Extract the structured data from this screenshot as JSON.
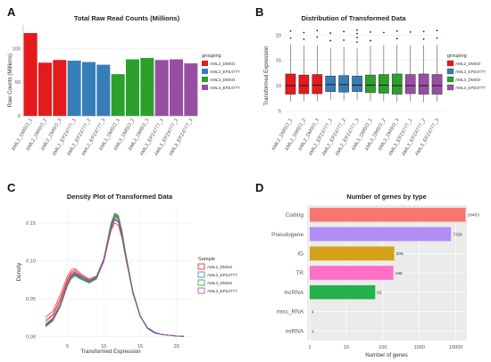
{
  "colors": {
    "AML2_DMSO": "#e41a1c",
    "AML2_EPZ4777": "#377eb8",
    "AML3_DMSO": "#2ca02c",
    "AML3_EPZ4777": "#984ea3",
    "coding": "#f8766d",
    "pseudogene": "#b18cf5",
    "ig": "#d4a017",
    "tr": "#ff6ec7",
    "lncrna": "#22b14c"
  },
  "chart_data": [
    {
      "panel": "A",
      "type": "bar",
      "title": "Total Raw Read Counts (Millions)",
      "xlabel": "",
      "ylabel": "Raw Counts (Millions)",
      "ylim": [
        0,
        135
      ],
      "yticks": [
        0,
        50,
        100
      ],
      "categories": [
        "AML2_DMSO_1",
        "AML2_DMSO_2",
        "AML2_DMSO_3",
        "AML2_EPZ4777_1",
        "AML2_EPZ4777_2",
        "AML2_EPZ4777_3",
        "AML3_DMSO_1",
        "AML3_DMSO_2",
        "AML3_DMSO_3",
        "AML3_EPZ4777_1",
        "AML3_EPZ4777_2",
        "AML3_EPZ4777_3"
      ],
      "values": [
        123,
        79,
        83,
        82,
        80,
        76,
        62,
        84,
        86,
        83,
        84,
        78
      ],
      "groups": [
        "AML2_DMSO",
        "AML2_DMSO",
        "AML2_DMSO",
        "AML2_EPZ4777",
        "AML2_EPZ4777",
        "AML2_EPZ4777",
        "AML3_DMSO",
        "AML3_DMSO",
        "AML3_DMSO",
        "AML3_EPZ4777",
        "AML3_EPZ4777",
        "AML3_EPZ4777"
      ],
      "legend_title": "grouping",
      "legend": [
        "AML2_DMSO",
        "AML2_EPZ4777",
        "AML3_DMSO",
        "AML3_EPZ4777"
      ]
    },
    {
      "panel": "B",
      "type": "box",
      "title": "Distribution of Transformed Data",
      "xlabel": "",
      "ylabel": "Transformed Expression",
      "ylim": [
        4,
        22
      ],
      "yticks": [
        5,
        10,
        15,
        20
      ],
      "categories": [
        "AML2_DMSO_1",
        "AML2_DMSO_2",
        "AML2_DMSO_3",
        "AML2_EPZ4777_1",
        "AML2_EPZ4777_2",
        "AML2_EPZ4777_3",
        "AML3_DMSO_1",
        "AML3_DMSO_2",
        "AML3_DMSO_3",
        "AML3_EPZ4777_1",
        "AML3_EPZ4777_2",
        "AML3_EPZ4777_3"
      ],
      "groups": [
        "AML2_DMSO",
        "AML2_DMSO",
        "AML2_DMSO",
        "AML2_EPZ4777",
        "AML2_EPZ4777",
        "AML2_EPZ4777",
        "AML3_DMSO",
        "AML3_DMSO",
        "AML3_DMSO",
        "AML3_EPZ4777",
        "AML3_EPZ4777",
        "AML3_EPZ4777"
      ],
      "boxes": [
        {
          "whislo": 6.8,
          "q1": 8.3,
          "med": 10.0,
          "q3": 12.3,
          "whishi": 18.2,
          "fliers": [
            19.4,
            20.8
          ]
        },
        {
          "whislo": 6.9,
          "q1": 8.4,
          "med": 10.0,
          "q3": 12.1,
          "whishi": 17.9,
          "fliers": [
            19.2,
            20.5
          ]
        },
        {
          "whislo": 6.9,
          "q1": 8.4,
          "med": 10.1,
          "q3": 12.2,
          "whishi": 18.0,
          "fliers": [
            19.6,
            20.9
          ]
        },
        {
          "whislo": 7.2,
          "q1": 8.8,
          "med": 10.2,
          "q3": 11.9,
          "whishi": 17.5,
          "fliers": [
            18.9,
            20.4
          ]
        },
        {
          "whislo": 7.1,
          "q1": 8.7,
          "med": 10.2,
          "q3": 12.0,
          "whishi": 17.7,
          "fliers": [
            19.0,
            20.7
          ]
        },
        {
          "whislo": 7.2,
          "q1": 8.8,
          "med": 10.1,
          "q3": 11.9,
          "whishi": 17.4,
          "fliers": [
            18.6,
            19.5,
            20.3,
            21.0
          ]
        },
        {
          "whislo": 7.0,
          "q1": 8.6,
          "med": 10.1,
          "q3": 12.1,
          "whishi": 17.8,
          "fliers": [
            18.9,
            20.6
          ]
        },
        {
          "whislo": 6.9,
          "q1": 8.5,
          "med": 10.1,
          "q3": 12.2,
          "whishi": 18.0,
          "fliers": [
            20.5
          ]
        },
        {
          "whislo": 6.8,
          "q1": 8.3,
          "med": 10.0,
          "q3": 12.3,
          "whishi": 18.1,
          "fliers": [
            19.3,
            20.8
          ]
        },
        {
          "whislo": 6.9,
          "q1": 8.4,
          "med": 10.0,
          "q3": 12.2,
          "whishi": 17.9,
          "fliers": [
            20.6
          ]
        },
        {
          "whislo": 6.7,
          "q1": 8.3,
          "med": 10.0,
          "q3": 12.3,
          "whishi": 18.0,
          "fliers": [
            19.2,
            20.7
          ]
        },
        {
          "whislo": 6.8,
          "q1": 8.3,
          "med": 10.0,
          "q3": 12.2,
          "whishi": 18.1,
          "fliers": [
            19.4,
            20.9
          ]
        }
      ],
      "legend_title": "grouping",
      "legend": [
        "AML2_DMSO",
        "AML2_EPZ4777",
        "AML3_DMSO",
        "AML3_EPZ4777"
      ]
    },
    {
      "panel": "C",
      "type": "line",
      "title": "Density Plot of Transformed Data",
      "xlabel": "Transformed Expression",
      "ylabel": "Density",
      "xlim": [
        1,
        22
      ],
      "ylim": [
        -0.005,
        0.17
      ],
      "xticks": [
        5,
        10,
        15,
        20
      ],
      "yticks": [
        0.0,
        0.05,
        0.1,
        0.15
      ],
      "ytick_labels": [
        "0.00",
        "0.05",
        "0.10",
        "0.15"
      ],
      "x": [
        2,
        3,
        4,
        5,
        5.5,
        6,
        7,
        8,
        9,
        10,
        10.5,
        11,
        11.5,
        12,
        12.5,
        13,
        14,
        15,
        16,
        17,
        18,
        19,
        20,
        21
      ],
      "series": [
        {
          "name": "AML2_DMSO",
          "values": [
            0.026,
            0.034,
            0.055,
            0.08,
            0.088,
            0.09,
            0.082,
            0.076,
            0.08,
            0.103,
            0.125,
            0.146,
            0.158,
            0.155,
            0.136,
            0.108,
            0.06,
            0.028,
            0.012,
            0.006,
            0.003,
            0.002,
            0.001,
            0.0005
          ]
        },
        {
          "name": "AML2_DMSO",
          "values": [
            0.022,
            0.03,
            0.05,
            0.076,
            0.085,
            0.088,
            0.08,
            0.074,
            0.078,
            0.1,
            0.122,
            0.142,
            0.154,
            0.151,
            0.133,
            0.106,
            0.058,
            0.027,
            0.012,
            0.006,
            0.003,
            0.002,
            0.001,
            0.0005
          ]
        },
        {
          "name": "AML2_DMSO",
          "values": [
            0.02,
            0.028,
            0.047,
            0.074,
            0.083,
            0.086,
            0.078,
            0.073,
            0.077,
            0.099,
            0.12,
            0.14,
            0.15,
            0.147,
            0.13,
            0.104,
            0.057,
            0.027,
            0.012,
            0.006,
            0.003,
            0.002,
            0.001,
            0.0005
          ]
        },
        {
          "name": "AML2_EPZ4777",
          "values": [
            0.016,
            0.024,
            0.042,
            0.07,
            0.079,
            0.083,
            0.077,
            0.072,
            0.077,
            0.101,
            0.124,
            0.147,
            0.16,
            0.157,
            0.138,
            0.109,
            0.059,
            0.027,
            0.011,
            0.005,
            0.003,
            0.002,
            0.001,
            0.0005
          ]
        },
        {
          "name": "AML2_EPZ4777",
          "values": [
            0.015,
            0.023,
            0.041,
            0.069,
            0.078,
            0.082,
            0.076,
            0.071,
            0.076,
            0.1,
            0.123,
            0.146,
            0.159,
            0.156,
            0.137,
            0.108,
            0.058,
            0.027,
            0.011,
            0.005,
            0.003,
            0.002,
            0.001,
            0.0005
          ]
        },
        {
          "name": "AML2_EPZ4777",
          "values": [
            0.017,
            0.025,
            0.043,
            0.071,
            0.08,
            0.084,
            0.078,
            0.073,
            0.078,
            0.102,
            0.125,
            0.148,
            0.161,
            0.158,
            0.139,
            0.11,
            0.059,
            0.027,
            0.011,
            0.005,
            0.003,
            0.002,
            0.001,
            0.0005
          ]
        },
        {
          "name": "AML3_DMSO",
          "values": [
            0.014,
            0.022,
            0.04,
            0.068,
            0.077,
            0.081,
            0.076,
            0.072,
            0.078,
            0.103,
            0.127,
            0.15,
            0.163,
            0.16,
            0.14,
            0.111,
            0.06,
            0.028,
            0.012,
            0.006,
            0.003,
            0.002,
            0.001,
            0.0005
          ]
        },
        {
          "name": "AML3_DMSO",
          "values": [
            0.015,
            0.023,
            0.041,
            0.069,
            0.078,
            0.082,
            0.076,
            0.071,
            0.077,
            0.101,
            0.124,
            0.148,
            0.161,
            0.158,
            0.138,
            0.109,
            0.059,
            0.027,
            0.012,
            0.006,
            0.003,
            0.002,
            0.001,
            0.0005
          ]
        },
        {
          "name": "AML3_DMSO",
          "values": [
            0.013,
            0.021,
            0.039,
            0.067,
            0.076,
            0.08,
            0.075,
            0.071,
            0.077,
            0.102,
            0.126,
            0.149,
            0.162,
            0.159,
            0.139,
            0.11,
            0.06,
            0.028,
            0.012,
            0.006,
            0.003,
            0.002,
            0.001,
            0.0005
          ]
        },
        {
          "name": "AML3_EPZ4777",
          "values": [
            0.015,
            0.023,
            0.042,
            0.07,
            0.08,
            0.084,
            0.079,
            0.074,
            0.079,
            0.101,
            0.122,
            0.143,
            0.155,
            0.152,
            0.134,
            0.106,
            0.058,
            0.027,
            0.012,
            0.006,
            0.003,
            0.002,
            0.001,
            0.0005
          ]
        },
        {
          "name": "AML3_EPZ4777",
          "values": [
            0.014,
            0.022,
            0.041,
            0.069,
            0.079,
            0.083,
            0.078,
            0.073,
            0.078,
            0.1,
            0.121,
            0.142,
            0.154,
            0.151,
            0.133,
            0.105,
            0.057,
            0.027,
            0.012,
            0.006,
            0.003,
            0.002,
            0.001,
            0.0005
          ]
        },
        {
          "name": "AML3_EPZ4777",
          "values": [
            0.016,
            0.024,
            0.043,
            0.071,
            0.081,
            0.085,
            0.08,
            0.075,
            0.08,
            0.102,
            0.123,
            0.144,
            0.156,
            0.153,
            0.135,
            0.107,
            0.058,
            0.027,
            0.012,
            0.006,
            0.003,
            0.002,
            0.001,
            0.0005
          ]
        }
      ],
      "legend_title": "Sample",
      "legend": [
        "AML2_DMSO",
        "AML2_EPZ4777",
        "AML3_DMSO",
        "AML3_EPZ4777"
      ]
    },
    {
      "panel": "D",
      "type": "bar",
      "orientation": "horizontal",
      "title": "Number of genes by type",
      "xlabel": "Number of genes",
      "ylabel": "",
      "xscale": "log",
      "xlim": [
        0.85,
        20000
      ],
      "xticks": [
        1,
        10,
        100,
        1000,
        10000
      ],
      "categories": [
        "Coding",
        "Pseudogene",
        "IG",
        "TR",
        "lncRNA",
        "misc_RNA",
        "miRNA"
      ],
      "values": [
        18403,
        7338,
        206,
        195,
        62,
        1,
        1
      ],
      "data_labels": [
        "18403",
        "7338",
        "206",
        "195",
        "62",
        "1",
        "1"
      ]
    }
  ],
  "panel_labels": [
    "A",
    "B",
    "C",
    "D"
  ]
}
